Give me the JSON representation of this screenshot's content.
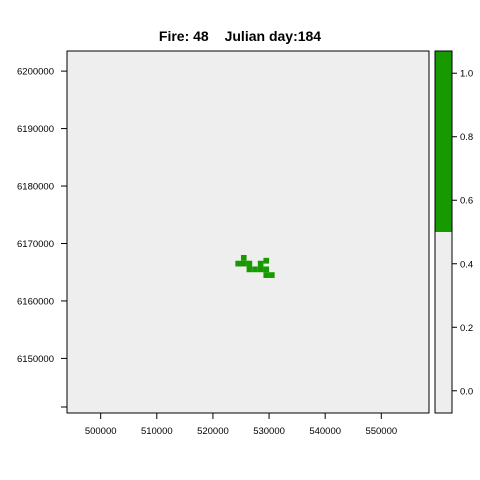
{
  "chart_data": {
    "type": "heatmap",
    "title_prefix": "Fire: 48",
    "title_suffix": "Julian day:184",
    "x_ticks": [
      500000,
      510000,
      520000,
      530000,
      540000,
      550000
    ],
    "y_ticks": [
      6150000,
      6160000,
      6170000,
      6180000,
      6190000,
      6200000
    ],
    "xlim": [
      494000,
      558500
    ],
    "ylim": [
      6140500,
      6203500
    ],
    "colorbar": {
      "ticks": [
        0.0,
        0.2,
        0.4,
        0.6,
        0.8,
        1.0
      ],
      "range": [
        -0.07,
        1.07
      ],
      "bins": [
        {
          "from": -0.07,
          "to": 0.5,
          "value": 0,
          "color": "#eeeeee"
        },
        {
          "from": 0.5,
          "to": 1.07,
          "value": 1,
          "color": "#179a00"
        }
      ]
    },
    "background_value": 0,
    "cell_size": 1000,
    "burned_cells": [
      [
        524500,
        6166500
      ],
      [
        525500,
        6166500
      ],
      [
        526500,
        6166500
      ],
      [
        525500,
        6167500
      ],
      [
        526500,
        6165500
      ],
      [
        527500,
        6165500
      ],
      [
        528500,
        6165500
      ],
      [
        528500,
        6166500
      ],
      [
        529500,
        6165500
      ],
      [
        529500,
        6164500
      ],
      [
        530500,
        6164500
      ],
      [
        529500,
        6167000
      ]
    ],
    "colors": {
      "background": "#eeeeee",
      "fire": "#179a00",
      "axis": "#000000"
    }
  }
}
